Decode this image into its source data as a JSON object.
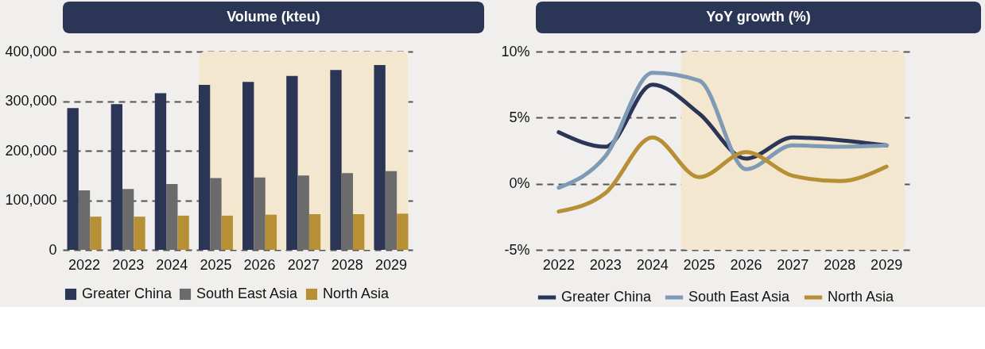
{
  "chart_data": [
    {
      "type": "bar",
      "title": "Volume (kteu)",
      "categories": [
        "2022",
        "2023",
        "2024",
        "2025",
        "2026",
        "2027",
        "2028",
        "2029"
      ],
      "series": [
        {
          "name": "Greater China",
          "color": "#2b3556",
          "values": [
            286000,
            294000,
            316000,
            333000,
            339000,
            351000,
            363000,
            373000
          ]
        },
        {
          "name": "South East Asia",
          "color": "#6b6b6b",
          "values": [
            120000,
            123000,
            133000,
            145000,
            146000,
            150000,
            155000,
            159000
          ]
        },
        {
          "name": "North Asia",
          "color": "#b78f35",
          "values": [
            67000,
            67000,
            69000,
            69000,
            71000,
            72000,
            72000,
            73000
          ]
        }
      ],
      "ylim": [
        0,
        400000
      ],
      "yticks": [
        {
          "value": 0,
          "label": "0"
        },
        {
          "value": 100000,
          "label": "100,000"
        },
        {
          "value": 200000,
          "label": "200,000"
        },
        {
          "value": 300000,
          "label": "300,000"
        },
        {
          "value": 400000,
          "label": "400,000"
        }
      ],
      "grid": "y",
      "legend": "bottom",
      "bands": [
        {
          "axis": "x",
          "from": "2025",
          "to": "2029",
          "color": "#f3e7cf"
        }
      ]
    },
    {
      "type": "line",
      "title": "YoY growth (%)",
      "categories": [
        "2022",
        "2023",
        "2024",
        "2025",
        "2026",
        "2027",
        "2028",
        "2029"
      ],
      "series": [
        {
          "name": "Greater China",
          "color": "#2b3556",
          "values": [
            3.9,
            2.8,
            7.5,
            5.3,
            1.9,
            3.5,
            3.3,
            2.9
          ]
        },
        {
          "name": "South East Asia",
          "color": "#7f9ab5",
          "values": [
            -0.3,
            2.1,
            8.4,
            7.8,
            1.1,
            2.9,
            2.8,
            2.9
          ]
        },
        {
          "name": "North Asia",
          "color": "#b78f35",
          "values": [
            -2.1,
            -0.7,
            3.5,
            0.5,
            2.4,
            0.6,
            0.2,
            1.3
          ]
        }
      ],
      "ylim": [
        -5,
        10
      ],
      "yticks": [
        {
          "value": -5,
          "label": "-5%"
        },
        {
          "value": 0,
          "label": "0%"
        },
        {
          "value": 5,
          "label": "5%"
        },
        {
          "value": 10,
          "label": "10%"
        }
      ],
      "grid": "y",
      "legend": "bottom",
      "line_style": "solid",
      "bands": [
        {
          "axis": "x",
          "from": "2025",
          "to": "2029",
          "color": "#f3e7cf"
        }
      ]
    }
  ]
}
